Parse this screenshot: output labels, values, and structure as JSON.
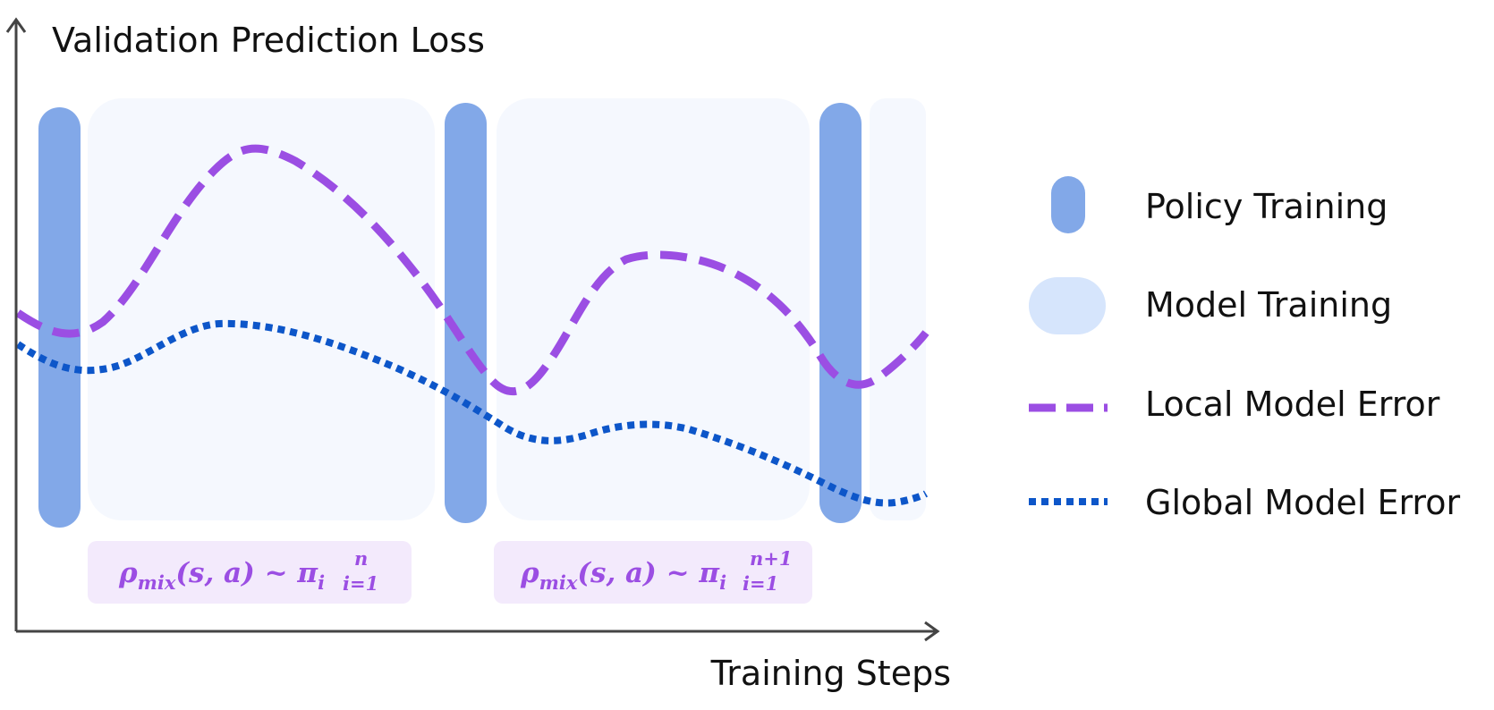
{
  "axes": {
    "y_label": "Validation Prediction Loss",
    "x_label": "Training Steps"
  },
  "legend": {
    "items": [
      {
        "label": "Policy Training",
        "symbol": "policy-pill"
      },
      {
        "label": "Model Training",
        "symbol": "model-pill"
      },
      {
        "label": "Local Model Error",
        "symbol": "dashed-line"
      },
      {
        "label": "Global Model Error",
        "symbol": "dotted-line"
      }
    ]
  },
  "formulas": [
    {
      "main": "ρ",
      "sub": "mix",
      "args": "(s, a) ~ π",
      "pi_sub": "i",
      "upper": "n",
      "lower": "i=1"
    },
    {
      "main": "ρ",
      "sub": "mix",
      "args": "(s, a) ~ π",
      "pi_sub": "i",
      "upper": "n+1",
      "lower": "i=1"
    }
  ],
  "colors": {
    "policy": "#82a8e8",
    "model": "#f5f8fe",
    "model_legend": "#d6e5fc",
    "local_error": "#9b4ee3",
    "global_error": "#0d56c9",
    "formula_bg": "#f3eafc",
    "axis": "#444444"
  }
}
